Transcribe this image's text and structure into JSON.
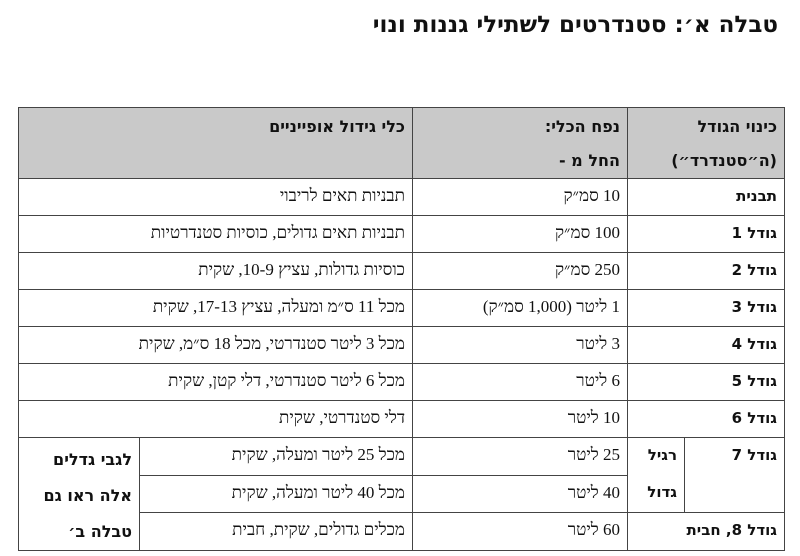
{
  "title": "טבלה א׳: סטנדרטים לשתילי גננות ונוי",
  "headers": {
    "size_name_line1": "כינוי הגודל",
    "size_name_line2": "(ה״סטנדרד״)",
    "volume_line1": "נפח הכלי:",
    "volume_line2": "החל מ -",
    "containers": "כלי גידול אופייניים"
  },
  "rows": [
    {
      "size": "תבנית",
      "volume": "10 סמ״ק",
      "containers": "תבניות תאים לריבוי"
    },
    {
      "size": "גודל 1",
      "volume": "100 סמ״ק",
      "containers": "תבניות תאים גדולים, כוסיות סטנדרטיות"
    },
    {
      "size": "גודל 2",
      "volume": "250 סמ״ק",
      "containers": "כוסיות גדולות, עציץ 10-9, שקית"
    },
    {
      "size": "גודל 3",
      "volume": "1 ליטר (1,000 סמ״ק)",
      "containers": "מכל 11 ס״מ ומעלה, עציץ 17-13, שקית"
    },
    {
      "size": "גודל 4",
      "volume": "3 ליטר",
      "containers": "מכל 3 ליטר סטנדרטי, מכל 18 ס״מ, שקית"
    },
    {
      "size": "גודל 5",
      "volume": "6 ליטר",
      "containers": "מכל 6 ליטר סטנדרטי, דלי קטן, שקית"
    },
    {
      "size": "גודל 6",
      "volume": "10 ליטר",
      "containers": "דלי סטנדרטי, שקית"
    }
  ],
  "size7": {
    "size": "גודל 7",
    "regular": {
      "label": "רגיל",
      "volume": "25 ליטר",
      "containers": "מכל 25 ליטר ומעלה, שקית"
    },
    "large": {
      "label": "גדול",
      "volume": "40 ליטר",
      "containers": "מכל 40 ליטר ומעלה, שקית"
    }
  },
  "size8": {
    "size": "גודל 8, חבית",
    "volume": "60 ליטר",
    "containers": "מכלים גדולים, שקית, חבית"
  },
  "note": "לגבי גדלים אלה ראו גם טבלה ב׳"
}
